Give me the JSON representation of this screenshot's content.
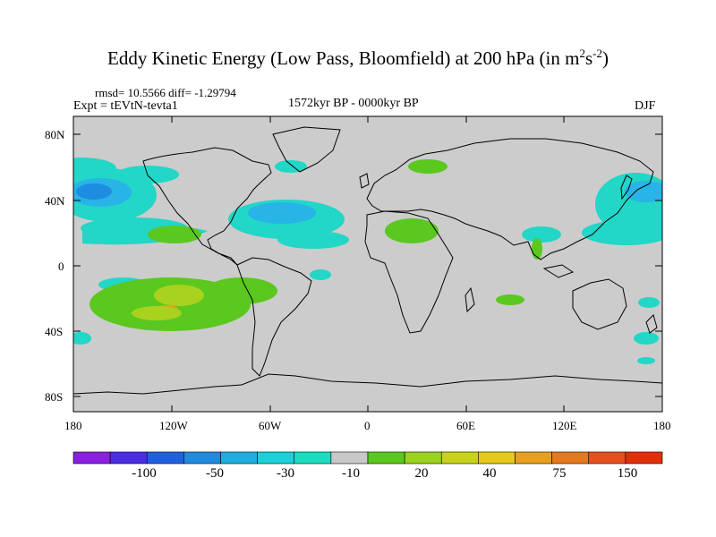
{
  "header": {
    "title_main": "Eddy Kinetic Energy (Low Pass, Bloomfield) at 200 hPa (in m",
    "title_sup1": "2",
    "title_mid": "s",
    "title_sup2": "-2",
    "title_end": ")",
    "rmsd": "rmsd= 10.5566 diff= -1.29794",
    "expt": "Expt = tEVtN-tevta1",
    "period": "1572kyr BP - 0000kyr BP",
    "season": "DJF"
  },
  "axes": {
    "lat_ticks": [
      "80N",
      "40N",
      "0",
      "40S",
      "80S"
    ],
    "lon_ticks": [
      "180",
      "120W",
      "60W",
      "0",
      "60E",
      "120E",
      "180"
    ]
  },
  "colorbar": {
    "colors": [
      "#8a1fe0",
      "#4b2ee0",
      "#2060e0",
      "#1e8ae0",
      "#1eaee0",
      "#1ecfd8",
      "#1edcc0",
      "#c8c8c8",
      "#5ac81e",
      "#9ad21e",
      "#c8d21e",
      "#e6c81e",
      "#e6a01e",
      "#e6781e",
      "#e6501e",
      "#e0300a"
    ],
    "labels": [
      "-100",
      "-50",
      "-30",
      "-10",
      "20",
      "40",
      "75",
      "150"
    ]
  },
  "map_colors": {
    "background": "#cccccc",
    "cyan": "#22d6c8",
    "light_blue": "#28b4e6",
    "mid_blue": "#1e8ce0",
    "green": "#5ac81e",
    "yellow_green": "#a8d21e",
    "orange": "#e6a01e"
  }
}
